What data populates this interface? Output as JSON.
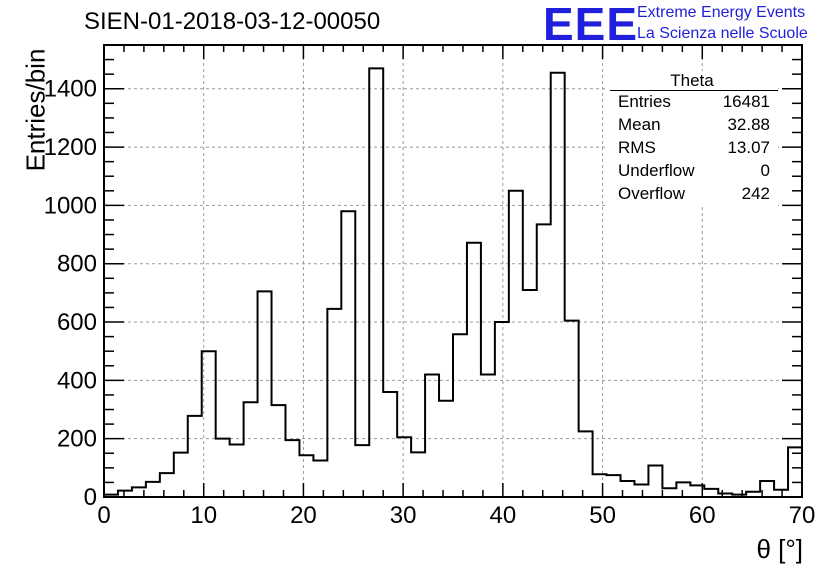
{
  "header": {
    "run_title": "SIEN-01-2018-03-12-00050",
    "logo_mark": "EEE",
    "logo_line1": "Extreme Energy Events",
    "logo_line2": "La Scienza nelle Scuole",
    "brand_color": "#1f1fdc"
  },
  "stats_box": {
    "title": "Theta",
    "rows": [
      {
        "name": "Entries",
        "value": "16481"
      },
      {
        "name": "Mean",
        "value": "32.88"
      },
      {
        "name": "RMS",
        "value": "13.07"
      },
      {
        "name": "Underflow",
        "value": "0"
      },
      {
        "name": "Overflow",
        "value": "242"
      }
    ]
  },
  "chart_data": {
    "type": "bar",
    "title": "SIEN-01-2018-03-12-00050",
    "xlabel": "θ [°]",
    "ylabel": "Entries/bin",
    "xlim": [
      0,
      70
    ],
    "ylim": [
      0,
      1550
    ],
    "bin_width": 1.4,
    "xticks": [
      0,
      10,
      20,
      30,
      40,
      50,
      60,
      70
    ],
    "yticks": [
      0,
      200,
      400,
      600,
      800,
      1000,
      1200,
      1400
    ],
    "grid": true,
    "bin_edges": [
      0,
      1.4,
      2.8,
      4.2,
      5.6,
      7.0,
      8.4,
      9.8,
      11.2,
      12.6,
      14.0,
      15.4,
      16.8,
      18.2,
      19.6,
      21.0,
      22.4,
      23.8,
      25.2,
      26.6,
      28.0,
      29.4,
      30.8,
      32.2,
      33.6,
      35.0,
      36.4,
      37.8,
      39.2,
      40.6,
      42.0,
      43.4,
      44.8,
      46.2,
      47.6,
      49.0,
      50.4,
      51.8,
      53.2,
      54.6,
      56.0,
      57.4,
      58.8,
      60.2,
      61.6,
      63.0,
      64.4,
      65.8,
      67.2,
      68.6,
      70.0
    ],
    "values": [
      8,
      22,
      33,
      52,
      82,
      152,
      278,
      500,
      200,
      180,
      325,
      705,
      315,
      195,
      143,
      125,
      645,
      980,
      178,
      1470,
      360,
      205,
      153,
      420,
      330,
      558,
      872,
      420,
      600,
      1050,
      710,
      935,
      1455,
      605,
      225,
      78,
      75,
      55,
      43,
      108,
      30,
      50,
      40,
      28,
      12,
      8,
      18,
      55,
      25,
      170
    ]
  }
}
